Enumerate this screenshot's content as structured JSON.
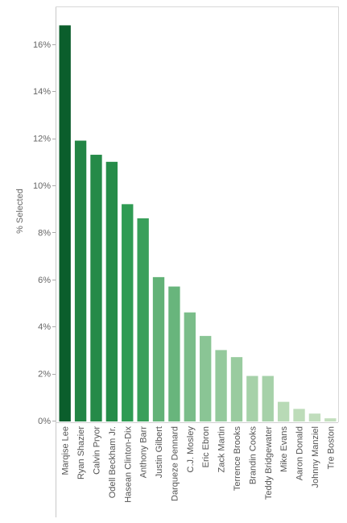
{
  "chart_data": {
    "type": "bar",
    "title": "",
    "xlabel": "",
    "ylabel": "% Selected",
    "ylim": [
      0,
      17.6
    ],
    "y_ticks": [
      "0%",
      "2%",
      "4%",
      "6%",
      "8%",
      "10%",
      "12%",
      "14%",
      "16%"
    ],
    "y_tick_values": [
      0,
      2,
      4,
      6,
      8,
      10,
      12,
      14,
      16
    ],
    "grid": false,
    "legend": "none",
    "color_scale": {
      "high": "#0b5e2c",
      "mid": "#2e9a52",
      "low": "#c3dfbe"
    },
    "categories": [
      "Marqise Lee",
      "Ryan Shazier",
      "Calvin Pryor",
      "Odell Beckham Jr.",
      "Hasean Clinton-Dix",
      "Anthony Barr",
      "Justin Gilbert",
      "Darqueze Dennard",
      "C.J. Mosley",
      "Eric Ebron",
      "Zack Martin",
      "Terrence Brooks",
      "Brandin Cooks",
      "Teddy Bridgewater",
      "Mike Evans",
      "Aaron Donald",
      "Johnny Manziel",
      "Tre Boston"
    ],
    "values": [
      16.8,
      11.9,
      11.3,
      11.0,
      9.2,
      8.6,
      6.1,
      5.7,
      4.6,
      3.6,
      3.0,
      2.7,
      1.9,
      1.9,
      0.8,
      0.5,
      0.3,
      0.1
    ]
  }
}
